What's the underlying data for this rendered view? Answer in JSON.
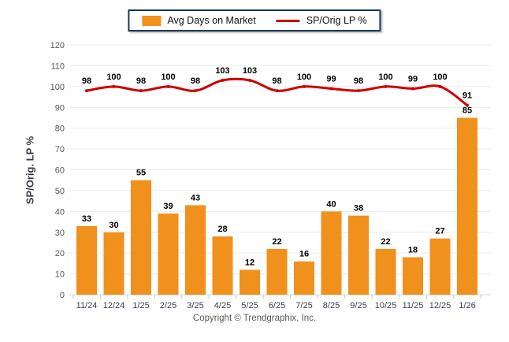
{
  "legend": {
    "items": [
      {
        "label": "Avg Days on Market",
        "swatch": "bar-swatch"
      },
      {
        "label": "SP/Orig LP %",
        "swatch": "line-swatch"
      }
    ]
  },
  "y_axis_title": "SP/Orig. LP %",
  "footer": "Copyright © Trendgraphix, Inc.",
  "colors": {
    "bar": "#F0911E",
    "line": "#CC0000",
    "legend_border": "#17375E",
    "grid": "#EBEBEB",
    "axis_line": "#D9D9D9",
    "tick_mark": "#C6C6C6",
    "y_tick_text": "#55555F",
    "x_tick_text": "#3E3E52",
    "value_label_text": "#000000",
    "footer_text": "#595959"
  },
  "chart_data": {
    "type": "bar",
    "title": "",
    "xlabel": "",
    "ylabel": "SP/Orig. LP %",
    "ylim": [
      0,
      120
    ],
    "ytick_step": 10,
    "grid": true,
    "legend_position": "top",
    "categories": [
      "11/24",
      "12/24",
      "1/25",
      "2/25",
      "3/25",
      "4/25",
      "5/25",
      "6/25",
      "7/25",
      "8/25",
      "9/25",
      "10/25",
      "11/25",
      "12/25",
      "1/26"
    ],
    "series": [
      {
        "name": "Avg Days on Market",
        "type": "bar",
        "color": "#F0911E",
        "values": [
          33,
          30,
          55,
          39,
          43,
          28,
          12,
          22,
          16,
          40,
          38,
          22,
          18,
          27,
          85
        ]
      },
      {
        "name": "SP/Orig LP %",
        "type": "line",
        "color": "#CC0000",
        "values": [
          98,
          100,
          98,
          100,
          98,
          103,
          103,
          98,
          100,
          99,
          98,
          100,
          99,
          100,
          91
        ]
      }
    ]
  }
}
